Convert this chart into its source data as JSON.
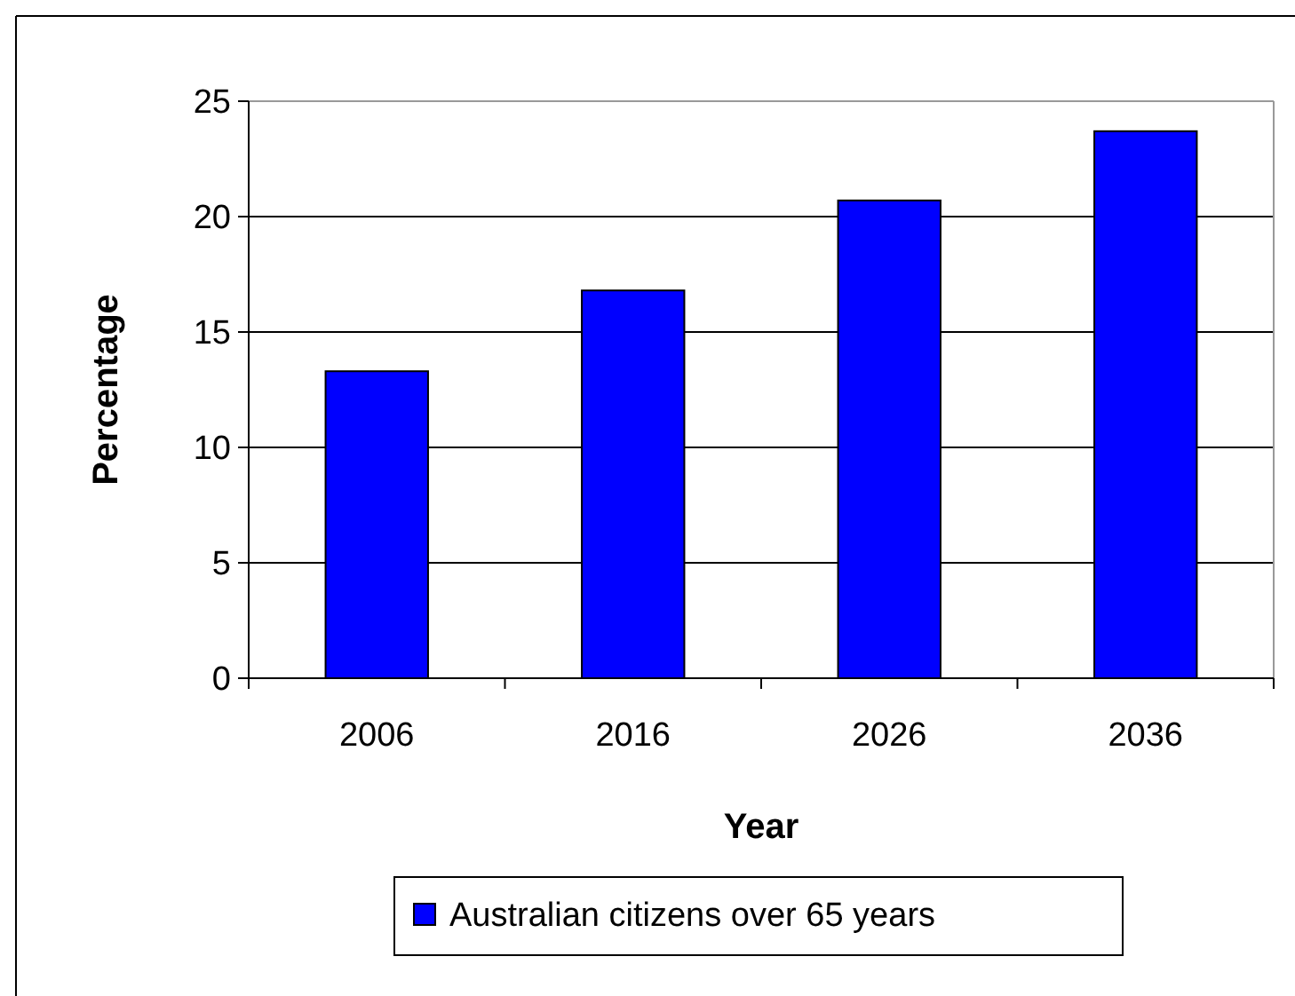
{
  "chart_data": {
    "type": "bar",
    "xlabel": "Year",
    "ylabel": "Percentage",
    "categories": [
      "2006",
      "2016",
      "2026",
      "2036"
    ],
    "series": [
      {
        "name": "Australian citizens over 65 years",
        "color": "#0000ff",
        "values": [
          13.3,
          16.8,
          20.7,
          23.7
        ]
      }
    ],
    "ylim": [
      0,
      25
    ],
    "yticks": [
      0,
      5,
      10,
      15,
      20,
      25
    ],
    "grid": "y",
    "legend": "bottom"
  }
}
